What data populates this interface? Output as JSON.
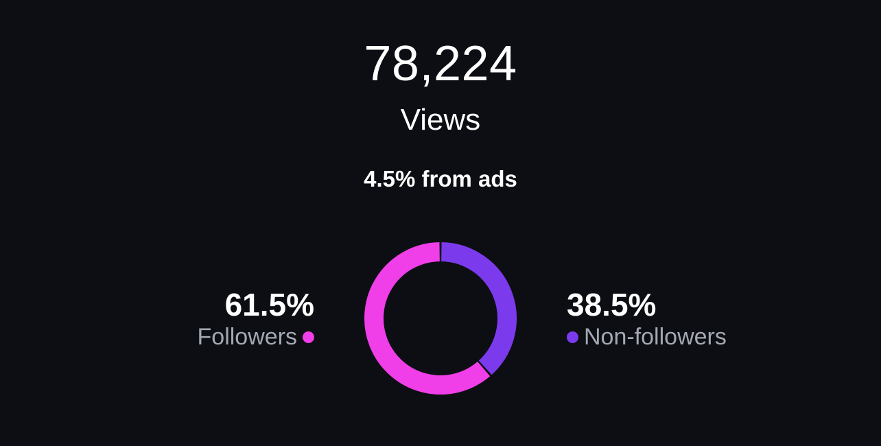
{
  "summary": {
    "total": "78,224",
    "label": "Views",
    "ads_note": "4.5% from ads"
  },
  "chart_data": {
    "type": "pie",
    "categories": [
      "Followers",
      "Non-followers"
    ],
    "values": [
      61.5,
      38.5
    ],
    "colors": [
      "#f03ee8",
      "#7c3aed"
    ]
  },
  "segments": [
    {
      "percent_label": "61.5%",
      "label": "Followers",
      "color": "#f03ee8"
    },
    {
      "percent_label": "38.5%",
      "label": "Non-followers",
      "color": "#7c3aed"
    }
  ]
}
